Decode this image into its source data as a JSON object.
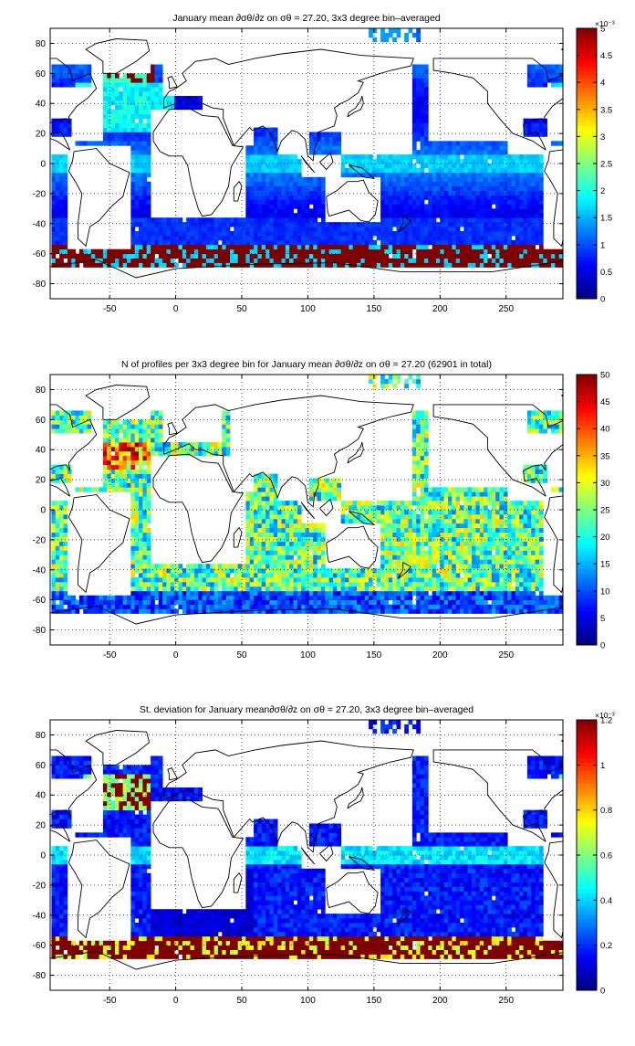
{
  "figure": {
    "panels_note": ""
  },
  "colormap": "jet",
  "chart_data": [
    {
      "type": "heatmap",
      "title": "January mean ∂σθ/∂z on σθ = 27.20, 3x3 degree bin–averaged",
      "xticks": [
        "-50",
        "0",
        "50",
        "100",
        "150",
        "200",
        "250"
      ],
      "xtick_values": [
        -50,
        0,
        50,
        100,
        150,
        200,
        250
      ],
      "yticks": [
        "80",
        "60",
        "40",
        "20",
        "0",
        "-20",
        "-40",
        "-60",
        "-80"
      ],
      "ytick_values": [
        80,
        60,
        40,
        20,
        0,
        -20,
        -40,
        -60,
        -80
      ],
      "xlim": [
        -95,
        293
      ],
      "ylim": [
        -90,
        90
      ],
      "grid": true,
      "colorbar": {
        "min": 0,
        "max": 5,
        "ticks": [
          "0",
          "0.5",
          "1",
          "1.5",
          "2",
          "2.5",
          "3",
          "3.5",
          "4",
          "4.5",
          "5"
        ],
        "tick_values": [
          0,
          0.5,
          1,
          1.5,
          2,
          2.5,
          3,
          3.5,
          4,
          4.5,
          5
        ],
        "exponent_label": "×10⁻³"
      },
      "field": "mean"
    },
    {
      "type": "heatmap",
      "title": "N of profiles per 3x3 degree bin for January mean ∂σθ/∂z on σθ = 27.20 (62901 in total)",
      "xticks": [
        "-50",
        "0",
        "50",
        "100",
        "150",
        "200",
        "250"
      ],
      "xtick_values": [
        -50,
        0,
        50,
        100,
        150,
        200,
        250
      ],
      "yticks": [
        "80",
        "60",
        "40",
        "20",
        "0",
        "-20",
        "-40",
        "-60",
        "-80"
      ],
      "ytick_values": [
        80,
        60,
        40,
        20,
        0,
        -20,
        -40,
        -60,
        -80
      ],
      "xlim": [
        -95,
        293
      ],
      "ylim": [
        -90,
        90
      ],
      "grid": true,
      "colorbar": {
        "min": 0,
        "max": 50,
        "ticks": [
          "0",
          "5",
          "10",
          "15",
          "20",
          "25",
          "30",
          "35",
          "40",
          "45",
          "50"
        ],
        "tick_values": [
          0,
          5,
          10,
          15,
          20,
          25,
          30,
          35,
          40,
          45,
          50
        ],
        "exponent_label": ""
      },
      "field": "count"
    },
    {
      "type": "heatmap",
      "title": "St. deviation for January mean∂σθ/∂z on σθ = 27.20, 3x3 degree bin–averaged",
      "xticks": [
        "-50",
        "0",
        "50",
        "100",
        "150",
        "200",
        "250"
      ],
      "xtick_values": [
        -50,
        0,
        50,
        100,
        150,
        200,
        250
      ],
      "yticks": [
        "80",
        "60",
        "40",
        "20",
        "0",
        "-20",
        "-40",
        "-60",
        "-80"
      ],
      "ytick_values": [
        80,
        60,
        40,
        20,
        0,
        -20,
        -40,
        -60,
        -80
      ],
      "xlim": [
        -95,
        293
      ],
      "ylim": [
        -90,
        90
      ],
      "grid": true,
      "colorbar": {
        "min": 0,
        "max": 1.2,
        "ticks": [
          "0",
          "0.2",
          "0.4",
          "0.6",
          "0.8",
          "1",
          "1.2"
        ],
        "tick_values": [
          0,
          0.2,
          0.4,
          0.6,
          0.8,
          1,
          1.2
        ],
        "exponent_label": "×10⁻³"
      },
      "field": "std"
    }
  ]
}
